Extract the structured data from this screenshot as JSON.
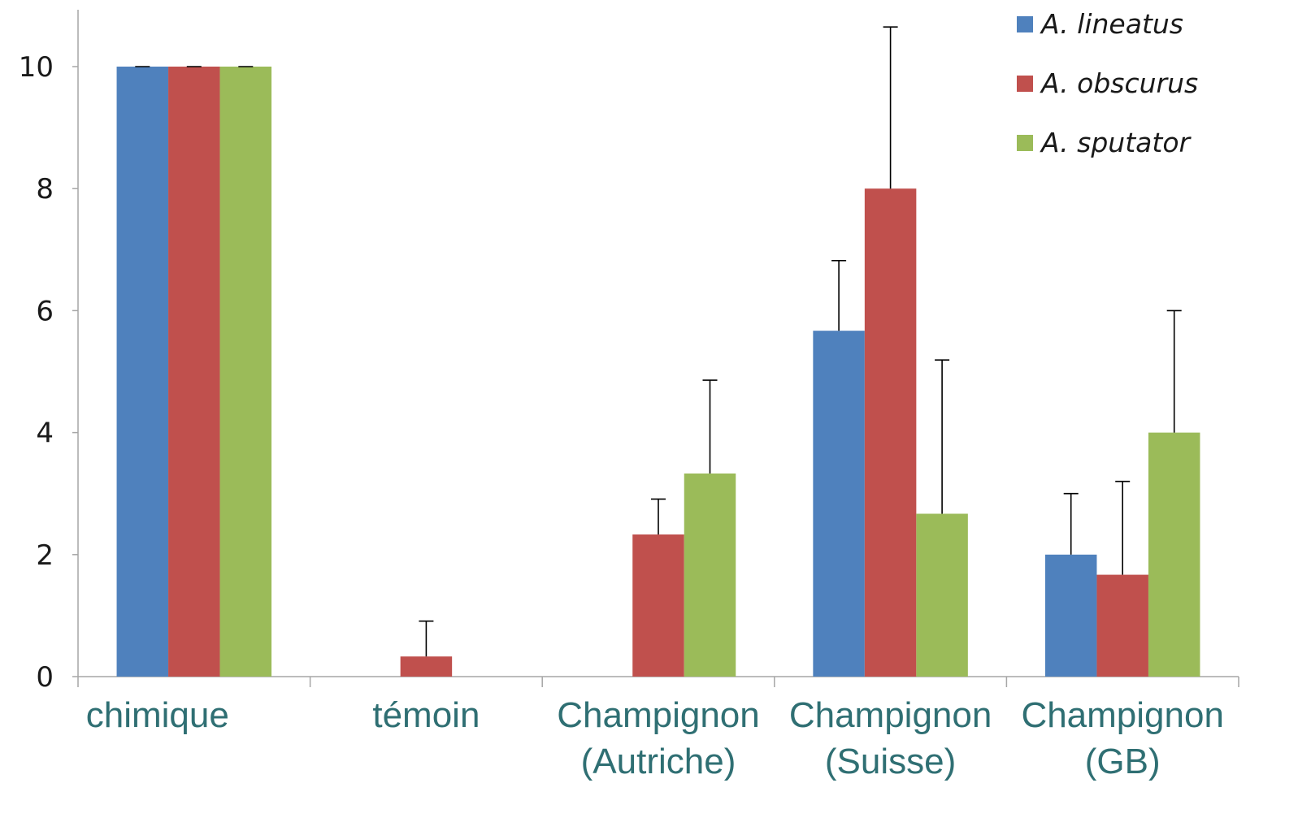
{
  "chart_data": {
    "type": "bar",
    "categories": [
      [
        "chimique"
      ],
      [
        "témoin"
      ],
      [
        "Champignon",
        "(Autriche)"
      ],
      [
        "Champignon",
        "(Suisse)"
      ],
      [
        "Champignon",
        "(GB)"
      ]
    ],
    "series": [
      {
        "name": "A. lineatus",
        "color": "#4f81bd",
        "values": [
          10,
          0,
          0,
          5.67,
          2.0
        ],
        "errors": [
          0,
          null,
          null,
          1.15,
          1.0
        ]
      },
      {
        "name": "A. obscurus",
        "color": "#c0504d",
        "values": [
          10,
          0.33,
          2.33,
          8.0,
          1.67
        ],
        "errors": [
          0,
          0.58,
          0.58,
          2.65,
          1.53
        ]
      },
      {
        "name": "A. sputator",
        "color": "#9bbb59",
        "values": [
          10,
          0,
          3.33,
          2.67,
          4.0
        ],
        "errors": [
          0,
          null,
          1.53,
          2.52,
          2.0
        ]
      }
    ],
    "yticks": [
      0,
      2,
      4,
      6,
      8,
      10
    ],
    "ylim": [
      0,
      11
    ],
    "title": "",
    "xlabel": "",
    "ylabel": "",
    "legend": "top-right",
    "grid": false
  }
}
